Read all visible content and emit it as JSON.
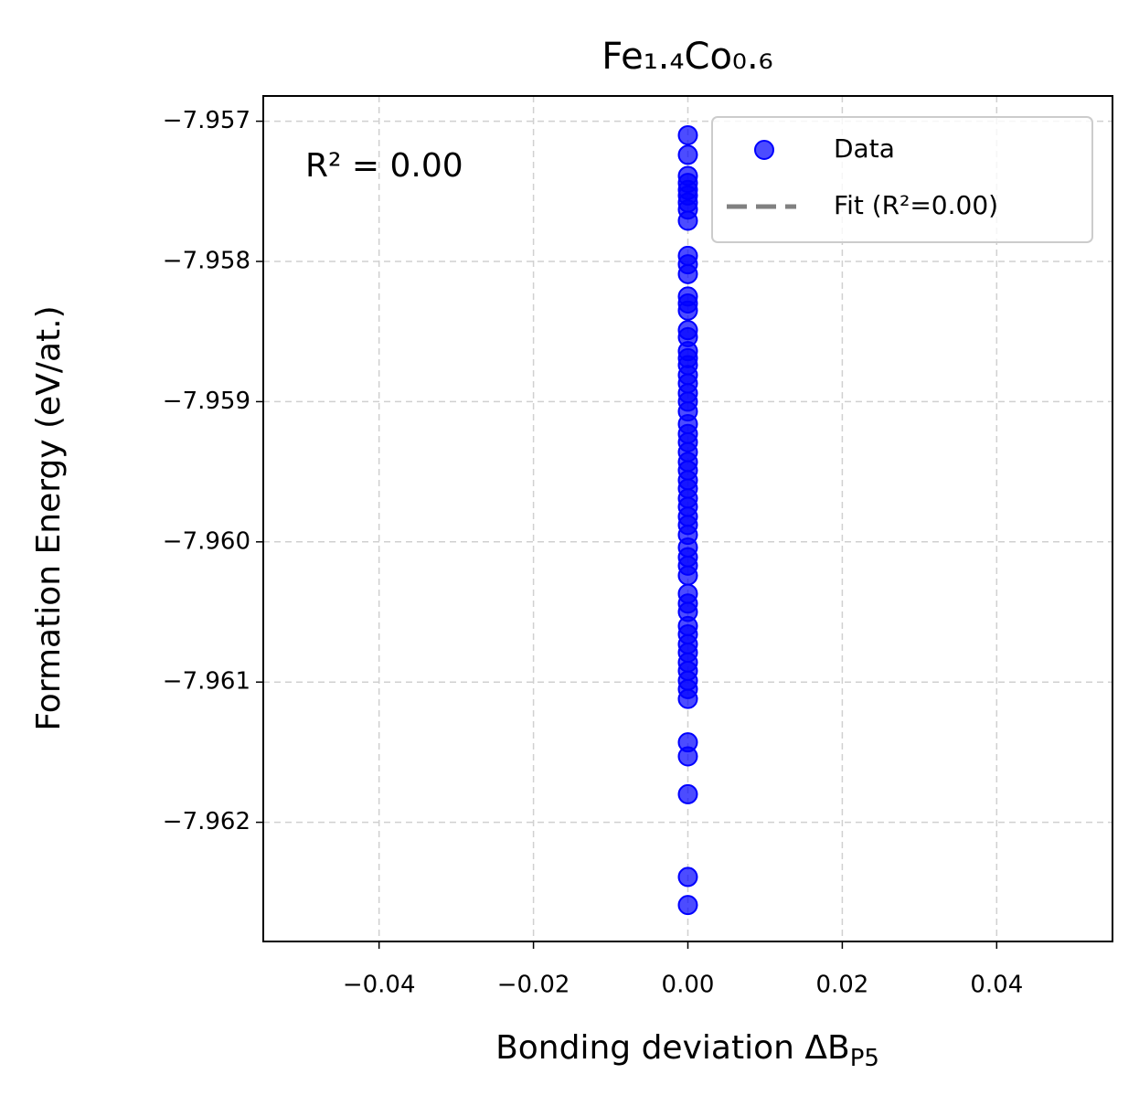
{
  "chart_data": {
    "type": "scatter",
    "title": "Fe₁.₄Co₀.₆",
    "xlabel": "Bonding deviation ΔB",
    "xlabel_sub": "P5",
    "ylabel": "Formation Energy (eV/at.)",
    "annotation": "R² = 0.00",
    "xlim": [
      -0.055,
      0.055
    ],
    "ylim": [
      -7.96285,
      -7.95682
    ],
    "xticks": [
      {
        "value": -0.04,
        "label": "−0.04"
      },
      {
        "value": -0.02,
        "label": "−0.02"
      },
      {
        "value": 0,
        "label": "0.00"
      },
      {
        "value": 0.02,
        "label": "0.02"
      },
      {
        "value": 0.04,
        "label": "0.04"
      }
    ],
    "yticks": [
      {
        "value": -7.957,
        "label": "−7.957"
      },
      {
        "value": -7.958,
        "label": "−7.958"
      },
      {
        "value": -7.959,
        "label": "−7.959"
      },
      {
        "value": -7.96,
        "label": "−7.960"
      },
      {
        "value": -7.961,
        "label": "−7.961"
      },
      {
        "value": -7.962,
        "label": "−7.962"
      }
    ],
    "grid": true,
    "legend": "upper right",
    "series": [
      {
        "name": "Data",
        "color": "#0000ff",
        "x": [
          0,
          0,
          0,
          0,
          0,
          0,
          0,
          0,
          0,
          0,
          0,
          0,
          0,
          0,
          0,
          0,
          0,
          0,
          0,
          0,
          0,
          0,
          0,
          0,
          0,
          0,
          0,
          0,
          0,
          0,
          0,
          0,
          0,
          0,
          0,
          0,
          0,
          0,
          0,
          0,
          0,
          0,
          0,
          0,
          0,
          0,
          0,
          0,
          0,
          0,
          0,
          0,
          0,
          0,
          0,
          0,
          0,
          0,
          0
        ],
        "values": [
          -7.9571,
          -7.95724,
          -7.95739,
          -7.95744,
          -7.95749,
          -7.95753,
          -7.95758,
          -7.95763,
          -7.95771,
          -7.95796,
          -7.95802,
          -7.95809,
          -7.95825,
          -7.9583,
          -7.95835,
          -7.95849,
          -7.95854,
          -7.95864,
          -7.95869,
          -7.95874,
          -7.95881,
          -7.95887,
          -7.95894,
          -7.959,
          -7.95907,
          -7.95916,
          -7.95923,
          -7.95929,
          -7.95936,
          -7.95943,
          -7.95949,
          -7.95956,
          -7.95962,
          -7.95969,
          -7.95975,
          -7.95982,
          -7.95988,
          -7.95995,
          -7.96004,
          -7.96011,
          -7.96017,
          -7.96024,
          -7.96037,
          -7.96044,
          -7.9605,
          -7.9606,
          -7.96066,
          -7.96073,
          -7.96079,
          -7.96086,
          -7.96092,
          -7.96099,
          -7.96105,
          -7.96112,
          -7.96143,
          -7.96153,
          -7.9618,
          -7.96239,
          -7.96259
        ]
      }
    ],
    "fit": {
      "name": "Fit (R²=0.00)",
      "color": "#808080"
    }
  }
}
